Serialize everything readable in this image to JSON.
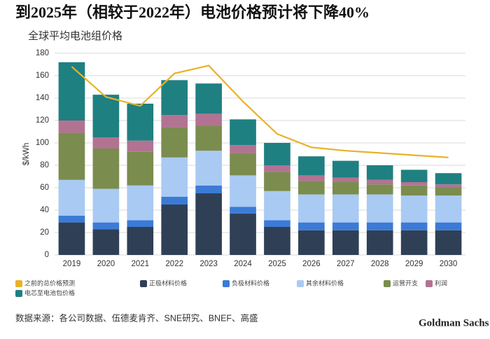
{
  "title": "到2025年（相较于2022年）电池价格预计将下降40%",
  "source": "数据来源：各公司数据、伍德麦肯齐、SNE研究、BNEF、高盛",
  "logo": "Goldman Sachs",
  "chart_data": {
    "type": "stacked_bar_line",
    "title": "全球平均电池组价格",
    "y_label": "$/kWh",
    "categories": [
      "2019",
      "2020",
      "2021",
      "2022",
      "2023",
      "2024",
      "2025",
      "2026",
      "2027",
      "2028",
      "2029",
      "2030"
    ],
    "series": [
      {
        "name": "正极材料价格",
        "color": "#2f4056",
        "values": [
          29,
          23,
          25,
          45,
          55,
          37,
          25,
          22,
          22,
          22,
          22,
          22
        ]
      },
      {
        "name": "负极材料价格",
        "color": "#3b7bd6",
        "values": [
          6,
          6,
          6,
          7,
          7,
          6,
          6,
          7,
          7,
          7,
          7,
          7
        ]
      },
      {
        "name": "其余材料价格",
        "color": "#a9caf2",
        "values": [
          32,
          30,
          31,
          35,
          31,
          28,
          26,
          25,
          25,
          25,
          24,
          24
        ]
      },
      {
        "name": "运营开支",
        "color": "#7b8c4f",
        "values": [
          42,
          36,
          30,
          27,
          22,
          20,
          17,
          12,
          11,
          9,
          9,
          7
        ]
      },
      {
        "name": "利润",
        "color": "#b27393",
        "values": [
          11,
          10,
          10,
          11,
          11,
          7,
          6,
          5,
          4,
          4,
          3,
          3
        ]
      },
      {
        "name": "电芯至电池包价格",
        "color": "#1f8081",
        "values": [
          52,
          38,
          33,
          31,
          27,
          23,
          20,
          17,
          15,
          13,
          11,
          10
        ]
      },
      {
        "name": "之前的总价格预测",
        "color": "#e8b22a",
        "type": "line",
        "values": [
          168,
          141,
          133,
          162,
          169,
          137,
          108,
          96,
          93,
          91,
          89,
          87
        ]
      }
    ],
    "ylim": [
      0,
      180
    ],
    "yticks": [
      0,
      20,
      40,
      60,
      80,
      100,
      120,
      140,
      160,
      180
    ],
    "grid": true
  }
}
